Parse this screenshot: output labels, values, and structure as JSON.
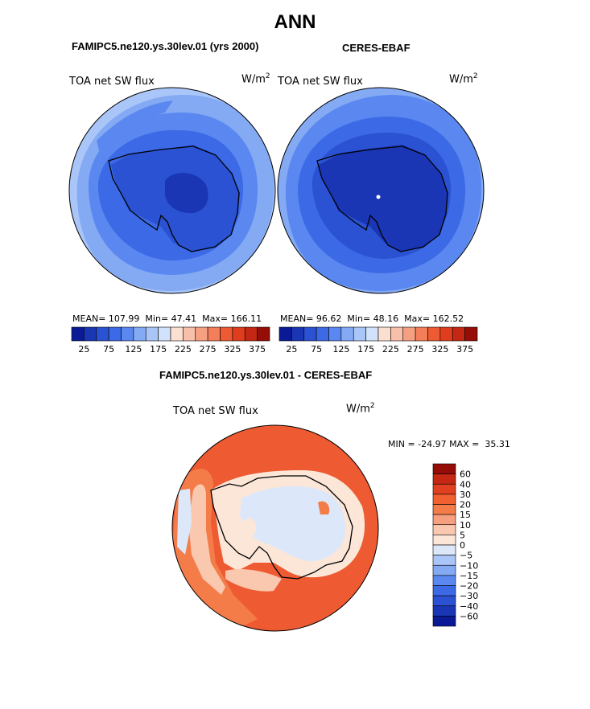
{
  "figure": {
    "title": "ANN",
    "panels": [
      {
        "header": "FAMIPC5.ne120.ys.30lev.01 (yrs 2000)",
        "variable": "TOA net SW flux",
        "units_base": "W/m",
        "units_exp": "2",
        "stats": {
          "mean_label": "MEAN=",
          "mean": "107.99",
          "min_label": "Min=",
          "min": "47.41",
          "max_label": "Max=",
          "max": "166.11"
        }
      },
      {
        "header": "CERES-EBAF",
        "variable": "TOA net SW flux",
        "units_base": "W/m",
        "units_exp": "2",
        "stats": {
          "mean_label": "MEAN=",
          "mean": "96.62",
          "min_label": "Min=",
          "min": "48.16",
          "max_label": "Max=",
          "max": "162.52"
        }
      }
    ],
    "difference": {
      "header": "FAMIPC5.ne120.ys.30lev.01 - CERES-EBAF",
      "variable": "TOA net SW flux",
      "units_base": "W/m",
      "units_exp": "2",
      "minmax": "MIN = -24.97 MAX =  35.31"
    },
    "abs_colorbar": {
      "colors": [
        "#0a1a96",
        "#1a36b4",
        "#2a52d2",
        "#3c6ae6",
        "#5a88f0",
        "#84aaf4",
        "#aac6f8",
        "#d2e2fa",
        "#fbe0d2",
        "#f8c0aa",
        "#f5a080",
        "#f27e5a",
        "#ee5a32",
        "#e03c1e",
        "#c42814",
        "#960c06"
      ],
      "tick_labels": [
        "25",
        "75",
        "125",
        "175",
        "225",
        "275",
        "325",
        "375"
      ]
    },
    "diff_colorbar": {
      "colors_top_to_bottom": [
        "#960c06",
        "#c42814",
        "#e04020",
        "#f06030",
        "#f47c48",
        "#f7a080",
        "#fac8ae",
        "#fbe6d8",
        "#dce8fa",
        "#aac6f8",
        "#84aaf4",
        "#5a88f0",
        "#3c6ae6",
        "#2a52d2",
        "#1a36b4",
        "#0a1a96"
      ],
      "tick_labels": [
        "60",
        "40",
        "30",
        "20",
        "15",
        "10",
        "5",
        "0",
        "−5",
        "−10",
        "−15",
        "−20",
        "−30",
        "−40",
        "−60"
      ]
    }
  }
}
